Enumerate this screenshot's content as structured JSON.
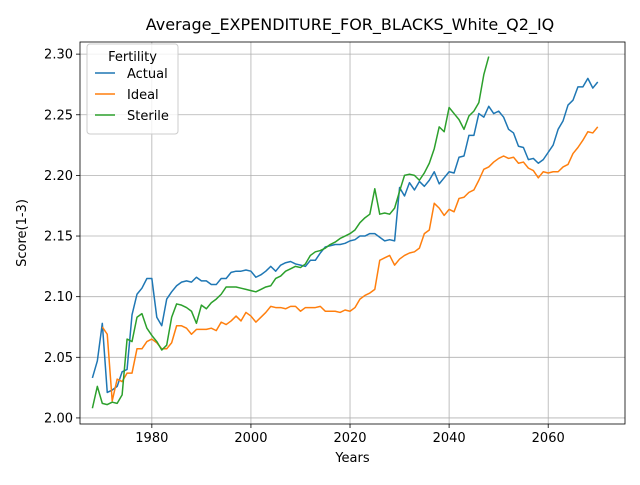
{
  "chart_data": {
    "type": "line",
    "title": "Average_EXPENDITURE_FOR_BLACKS_White_Q2_IQ",
    "xlabel": "Years",
    "ylabel": "Score(1-3)",
    "xlim": [
      1965.5,
      2075.5
    ],
    "ylim": [
      1.995,
      2.31
    ],
    "xticks": [
      1980,
      2000,
      2020,
      2040,
      2060
    ],
    "yticks": [
      2.0,
      2.05,
      2.1,
      2.15,
      2.2,
      2.25,
      2.3
    ],
    "ytick_labels": [
      "2.00",
      "2.05",
      "2.10",
      "2.15",
      "2.20",
      "2.25",
      "2.30"
    ],
    "grid": true,
    "legend": {
      "title": "Fertility",
      "placement": "top-left"
    },
    "series": [
      {
        "name": "Actual",
        "color": "#1f77b4",
        "x": [
          1968,
          1969,
          1970,
          1971,
          1972,
          1973,
          1974,
          1975,
          1976,
          1977,
          1978,
          1979,
          1980,
          1981,
          1982,
          1983,
          1984,
          1985,
          1986,
          1987,
          1988,
          1989,
          1990,
          1991,
          1992,
          1993,
          1994,
          1995,
          1996,
          1997,
          1998,
          1999,
          2000,
          2001,
          2002,
          2003,
          2004,
          2005,
          2006,
          2007,
          2008,
          2009,
          2010,
          2011,
          2012,
          2013,
          2014,
          2015,
          2016,
          2017,
          2018,
          2019,
          2020,
          2021,
          2022,
          2023,
          2024,
          2025,
          2026,
          2027,
          2028,
          2029,
          2030,
          2031,
          2032,
          2033,
          2034,
          2035,
          2036,
          2037,
          2038,
          2039,
          2040,
          2041,
          2042,
          2043,
          2044,
          2045,
          2046,
          2047,
          2048,
          2049,
          2050,
          2051,
          2052,
          2053,
          2054,
          2055,
          2056,
          2057,
          2058,
          2059,
          2060,
          2061,
          2062,
          2063,
          2064,
          2065,
          2066,
          2067,
          2068,
          2069,
          2070
        ],
        "y": [
          2.033,
          2.047,
          2.078,
          2.021,
          2.023,
          2.026,
          2.038,
          2.04,
          2.085,
          2.102,
          2.107,
          2.115,
          2.115,
          2.083,
          2.076,
          2.098,
          2.104,
          2.109,
          2.112,
          2.113,
          2.112,
          2.116,
          2.113,
          2.113,
          2.11,
          2.11,
          2.115,
          2.115,
          2.12,
          2.121,
          2.121,
          2.122,
          2.121,
          2.116,
          2.118,
          2.121,
          2.125,
          2.121,
          2.126,
          2.128,
          2.129,
          2.127,
          2.126,
          2.125,
          2.13,
          2.13,
          2.136,
          2.141,
          2.142,
          2.143,
          2.143,
          2.144,
          2.146,
          2.147,
          2.15,
          2.15,
          2.152,
          2.152,
          2.149,
          2.146,
          2.147,
          2.146,
          2.19,
          2.183,
          2.194,
          2.188,
          2.195,
          2.191,
          2.196,
          2.203,
          2.193,
          2.198,
          2.203,
          2.202,
          2.215,
          2.216,
          2.233,
          2.233,
          2.251,
          2.248,
          2.257,
          2.251,
          2.253,
          2.248,
          2.238,
          2.235,
          2.224,
          2.223,
          2.213,
          2.214,
          2.21,
          2.213,
          2.219,
          2.225,
          2.238,
          2.245,
          2.258,
          2.262,
          2.273,
          2.273,
          2.28,
          2.272,
          2.277
        ]
      },
      {
        "name": "Ideal",
        "color": "#ff7f0e",
        "x": [
          1970,
          1971,
          1972,
          1973,
          1974,
          1975,
          1976,
          1977,
          1978,
          1979,
          1980,
          1981,
          1982,
          1983,
          1984,
          1985,
          1986,
          1987,
          1988,
          1989,
          1990,
          1991,
          1992,
          1993,
          1994,
          1995,
          1996,
          1997,
          1998,
          1999,
          2000,
          2001,
          2002,
          2003,
          2004,
          2005,
          2006,
          2007,
          2008,
          2009,
          2010,
          2011,
          2012,
          2013,
          2014,
          2015,
          2016,
          2017,
          2018,
          2019,
          2020,
          2021,
          2022,
          2023,
          2024,
          2025,
          2026,
          2027,
          2028,
          2029,
          2030,
          2031,
          2032,
          2033,
          2034,
          2035,
          2036,
          2037,
          2038,
          2039,
          2040,
          2041,
          2042,
          2043,
          2044,
          2045,
          2046,
          2047,
          2048,
          2049,
          2050,
          2051,
          2052,
          2053,
          2054,
          2055,
          2056,
          2057,
          2058,
          2059,
          2060,
          2061,
          2062,
          2063,
          2064,
          2065,
          2066,
          2067,
          2068,
          2069,
          2070
        ],
        "y": [
          2.075,
          2.069,
          2.014,
          2.032,
          2.03,
          2.037,
          2.037,
          2.057,
          2.057,
          2.063,
          2.065,
          2.062,
          2.057,
          2.057,
          2.062,
          2.076,
          2.076,
          2.074,
          2.069,
          2.073,
          2.073,
          2.073,
          2.074,
          2.072,
          2.079,
          2.077,
          2.08,
          2.084,
          2.08,
          2.087,
          2.084,
          2.079,
          2.083,
          2.087,
          2.092,
          2.091,
          2.091,
          2.09,
          2.092,
          2.092,
          2.088,
          2.091,
          2.091,
          2.091,
          2.092,
          2.088,
          2.088,
          2.088,
          2.087,
          2.089,
          2.088,
          2.091,
          2.098,
          2.101,
          2.103,
          2.106,
          2.13,
          2.132,
          2.134,
          2.126,
          2.131,
          2.134,
          2.136,
          2.137,
          2.14,
          2.152,
          2.155,
          2.177,
          2.173,
          2.167,
          2.172,
          2.17,
          2.181,
          2.182,
          2.186,
          2.188,
          2.196,
          2.205,
          2.207,
          2.211,
          2.214,
          2.216,
          2.214,
          2.215,
          2.21,
          2.211,
          2.206,
          2.204,
          2.198,
          2.203,
          2.202,
          2.203,
          2.203,
          2.207,
          2.209,
          2.218,
          2.223,
          2.229,
          2.236,
          2.235,
          2.24
        ]
      },
      {
        "name": "Sterile",
        "color": "#2ca02c",
        "x": [
          1968,
          1969,
          1970,
          1971,
          1972,
          1973,
          1974,
          1975,
          1976,
          1977,
          1978,
          1979,
          1980,
          1981,
          1982,
          1983,
          1984,
          1985,
          1986,
          1987,
          1988,
          1989,
          1990,
          1991,
          1992,
          1993,
          1994,
          1995,
          1996,
          1997,
          1998,
          1999,
          2000,
          2001,
          2002,
          2003,
          2004,
          2005,
          2006,
          2007,
          2008,
          2009,
          2010,
          2011,
          2012,
          2013,
          2014,
          2015,
          2016,
          2017,
          2018,
          2019,
          2020,
          2021,
          2022,
          2023,
          2024,
          2025,
          2026,
          2027,
          2028,
          2029,
          2030,
          2031,
          2032,
          2033,
          2034,
          2035,
          2036,
          2037,
          2038,
          2039,
          2040,
          2041,
          2042,
          2043,
          2044,
          2045,
          2046,
          2047,
          2048
        ],
        "y": [
          2.008,
          2.026,
          2.012,
          2.011,
          2.013,
          2.012,
          2.019,
          2.065,
          2.063,
          2.083,
          2.086,
          2.074,
          2.068,
          2.063,
          2.056,
          2.06,
          2.083,
          2.094,
          2.093,
          2.091,
          2.088,
          2.078,
          2.093,
          2.09,
          2.095,
          2.098,
          2.102,
          2.108,
          2.108,
          2.108,
          2.107,
          2.106,
          2.105,
          2.104,
          2.106,
          2.108,
          2.109,
          2.115,
          2.117,
          2.121,
          2.123,
          2.125,
          2.124,
          2.127,
          2.134,
          2.137,
          2.138,
          2.14,
          2.143,
          2.145,
          2.148,
          2.15,
          2.152,
          2.155,
          2.161,
          2.165,
          2.168,
          2.189,
          2.168,
          2.169,
          2.168,
          2.173,
          2.187,
          2.2,
          2.201,
          2.2,
          2.196,
          2.202,
          2.21,
          2.222,
          2.24,
          2.236,
          2.256,
          2.251,
          2.246,
          2.238,
          2.249,
          2.253,
          2.26,
          2.283,
          2.298
        ]
      }
    ]
  }
}
